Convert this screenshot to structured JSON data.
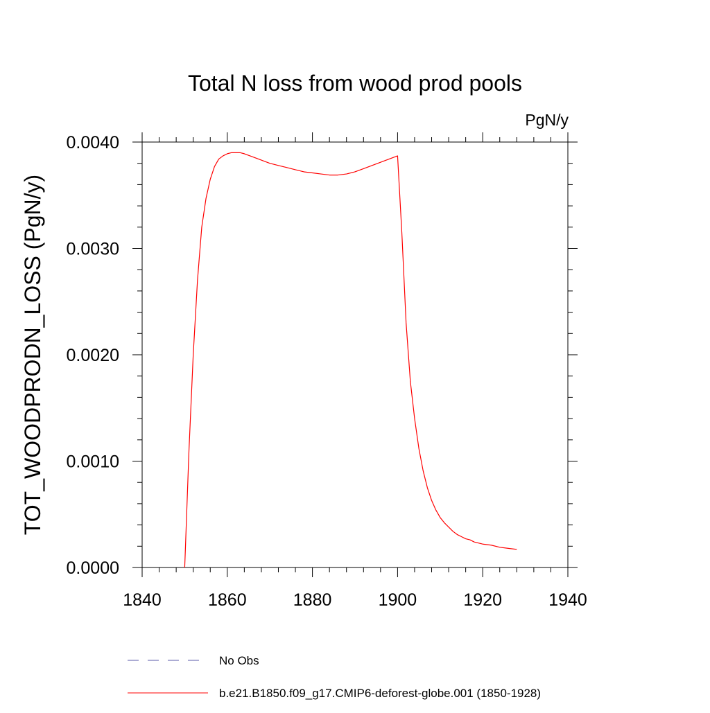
{
  "chart_data": {
    "type": "line",
    "title": "Total N loss from wood prod pools",
    "units_label": "PgN/y",
    "xlabel": "",
    "ylabel": "TOT_WOODPRODN_LOSS  (PgN/y)",
    "xlim": [
      1840,
      1940
    ],
    "ylim": [
      0,
      0.004
    ],
    "x_ticks": [
      1840,
      1860,
      1880,
      1900,
      1920,
      1940
    ],
    "x_tick_labels": [
      "1840",
      "1860",
      "1880",
      "1900",
      "1920",
      "1940"
    ],
    "y_ticks": [
      0,
      0.001,
      0.002,
      0.003,
      0.004
    ],
    "y_tick_labels": [
      "0.0000",
      "0.0010",
      "0.0020",
      "0.0030",
      "0.0040"
    ],
    "grid": false,
    "legend_placement": "bottom",
    "legend": [
      {
        "label": "No Obs",
        "color": "#5a5aa8",
        "dash": "dashed"
      },
      {
        "label": "b.e21.B1850.f09_g17.CMIP6-deforest-globe.001 (1850-1928)",
        "color": "#ff0000",
        "dash": "solid"
      }
    ],
    "series": [
      {
        "name": "b.e21.B1850.f09_g17.CMIP6-deforest-globe.001 (1850-1928)",
        "color": "#ff0000",
        "x": [
          1850,
          1851,
          1852,
          1853,
          1854,
          1855,
          1856,
          1857,
          1858,
          1859,
          1860,
          1861,
          1862,
          1863,
          1864,
          1866,
          1868,
          1870,
          1872,
          1874,
          1876,
          1878,
          1880,
          1882,
          1884,
          1885,
          1886,
          1888,
          1890,
          1892,
          1894,
          1896,
          1898,
          1900,
          1901,
          1902,
          1903,
          1904,
          1905,
          1906,
          1907,
          1908,
          1909,
          1910,
          1911,
          1912,
          1913,
          1914,
          1915,
          1916,
          1917,
          1918,
          1919,
          1920,
          1922,
          1924,
          1926,
          1928
        ],
        "values": [
          0.0,
          0.0011,
          0.002,
          0.0027,
          0.0032,
          0.00347,
          0.00365,
          0.00377,
          0.00384,
          0.00387,
          0.00389,
          0.0039,
          0.0039,
          0.0039,
          0.00389,
          0.00386,
          0.00383,
          0.0038,
          0.00378,
          0.00376,
          0.00374,
          0.00372,
          0.00371,
          0.0037,
          0.00369,
          0.00369,
          0.00369,
          0.0037,
          0.00372,
          0.00375,
          0.00378,
          0.00381,
          0.00384,
          0.00387,
          0.00315,
          0.0023,
          0.00175,
          0.0014,
          0.00112,
          0.00091,
          0.00075,
          0.00063,
          0.00054,
          0.00047,
          0.00042,
          0.00038,
          0.00034,
          0.00031,
          0.00029,
          0.00027,
          0.00026,
          0.00024,
          0.00023,
          0.00022,
          0.00021,
          0.00019,
          0.00018,
          0.00017
        ]
      }
    ]
  }
}
